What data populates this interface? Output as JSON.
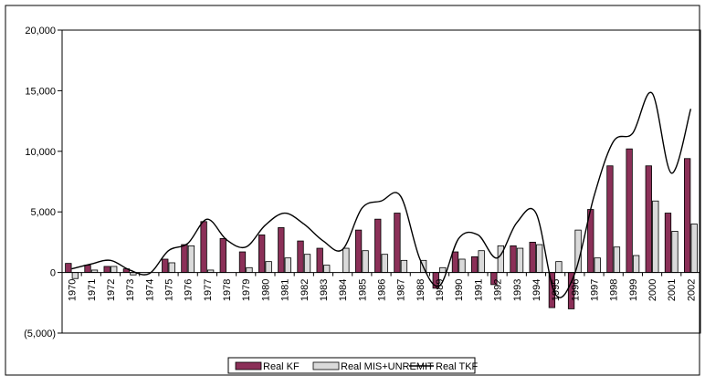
{
  "chart_data": {
    "type": "bar",
    "categories": [
      "1970",
      "1971",
      "1972",
      "1973",
      "1974",
      "1975",
      "1976",
      "1977",
      "1978",
      "1979",
      "1980",
      "1981",
      "1982",
      "1983",
      "1984",
      "1985",
      "1986",
      "1987",
      "1988",
      "1989",
      "1990",
      "1991",
      "1992",
      "1993",
      "1994",
      "1995",
      "1996",
      "1997",
      "1998",
      "1999",
      "2000",
      "2001",
      "2002"
    ],
    "ylim": [
      -5000,
      20000
    ],
    "yticks": [
      -5000,
      0,
      5000,
      10000,
      15000,
      20000
    ],
    "ytick_labels": [
      "(5,000)",
      "0",
      "5,000",
      "10,000",
      "15,000",
      "20,000"
    ],
    "series": [
      {
        "name": "Real KF",
        "type": "bar",
        "color": "#8B3058",
        "values": [
          750,
          600,
          500,
          300,
          0,
          1100,
          2300,
          4200,
          2800,
          1700,
          3100,
          3700,
          2600,
          2000,
          0,
          3500,
          4400,
          4900,
          0,
          -1300,
          1700,
          1300,
          -1000,
          2200,
          2500,
          -2900,
          -3000,
          5200,
          8800,
          10200,
          8800,
          4900,
          9400
        ]
      },
      {
        "name": "Real MIS+UNREMIT",
        "type": "bar",
        "color": "#DADADA",
        "values": [
          -500,
          200,
          500,
          -200,
          0,
          800,
          2200,
          200,
          0,
          400,
          900,
          1200,
          1500,
          600,
          2000,
          1800,
          1500,
          1000,
          1000,
          400,
          1100,
          1800,
          2200,
          2000,
          2300,
          900,
          3500,
          1200,
          2100,
          1400,
          5900,
          3400,
          4000
        ]
      },
      {
        "name": "Real TKF",
        "type": "line",
        "color": "#000000",
        "values": [
          300,
          700,
          1000,
          200,
          -100,
          1800,
          2400,
          4400,
          2700,
          2100,
          3900,
          4900,
          4000,
          2600,
          1900,
          5300,
          5900,
          6300,
          1100,
          -1100,
          2800,
          3100,
          1200,
          4100,
          4900,
          -1800,
          -100,
          6300,
          10800,
          11500,
          14800,
          8200,
          13500
        ]
      }
    ],
    "legend_position": "bottom-center",
    "grid": false
  }
}
